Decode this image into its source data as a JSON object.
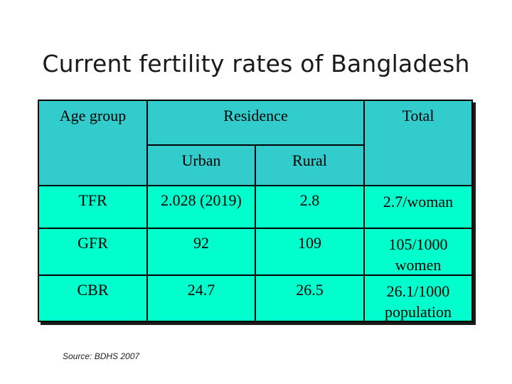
{
  "title": "Current fertility rates of Bangladesh",
  "table": {
    "header": {
      "age_group": "Age group",
      "residence": "Residence",
      "total": "Total",
      "urban": "Urban",
      "rural": "Rural"
    },
    "rows": [
      {
        "label": "TFR",
        "urban": "2.028 (2019)",
        "rural": "2.8",
        "total_line1": "2.7/woman",
        "total_line2": ""
      },
      {
        "label": "GFR",
        "urban": "92",
        "rural": "109",
        "total_line1": "105/1000",
        "total_line2": "women"
      },
      {
        "label": "CBR",
        "urban": "24.7",
        "rural": "26.5",
        "total_line1": "26.1/1000",
        "total_line2": "population"
      }
    ]
  },
  "source": "Source: BDHS 2007",
  "colors": {
    "header_bg": "#33cccc",
    "body_bg": "#00ffcc",
    "border": "#000000"
  }
}
